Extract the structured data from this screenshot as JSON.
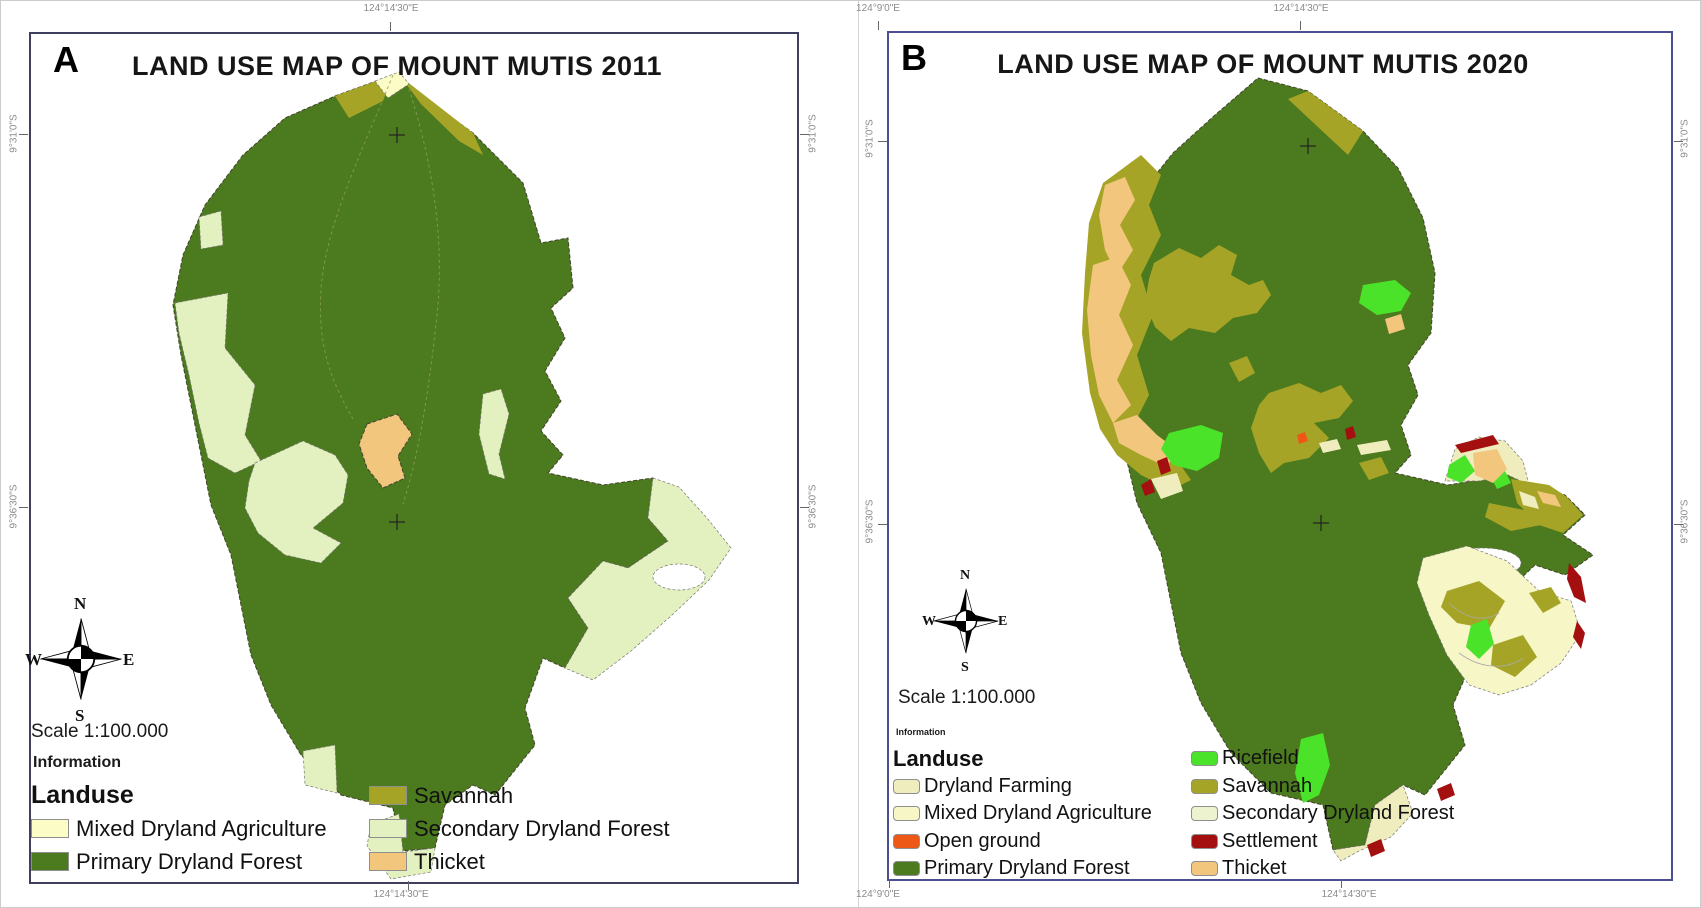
{
  "colors": {
    "primary_dryland_forest": "#4C7A1E",
    "secondary_dryland_forest": "#E3F0BF",
    "secondary_dryland_forest_b": "#EEF3CF",
    "mixed_dryland_agriculture": "#FCFCC6",
    "mixed_dryland_agriculture_b": "#F6F6C6",
    "savannah": "#A6A426",
    "thicket": "#F3C67E",
    "ricefield": "#4BE22A",
    "settlement": "#A3100F",
    "open_ground": "#EE5817",
    "dryland_farming": "#EFEDBD"
  },
  "panels": [
    {
      "letter": "A",
      "title": "LAND USE MAP OF MOUNT MUTIS 2011",
      "scale_label": "Scale 1:100.000",
      "information_label": "Information",
      "landuse_label": "Landuse",
      "compass": {
        "n": "N",
        "s": "S",
        "e": "E",
        "w": "W"
      },
      "coords": {
        "top_center": "124°14'30\"E",
        "bottom_center": "124°14'30\"E",
        "left_upper": "9°31'0\"S",
        "left_lower": "9°36'30\"S",
        "right_upper": "9°31'0\"S",
        "right_lower": "9°36'30\"S"
      },
      "legend_columns": [
        [
          {
            "label": "Mixed Dryland Agriculture",
            "color": "#FCFCC6"
          },
          {
            "label": "Primary Dryland Forest",
            "color": "#4C7A1E"
          }
        ],
        [
          {
            "label": "Savannah",
            "color": "#A6A426"
          },
          {
            "label": "Secondary Dryland Forest",
            "color": "#E3F0BF"
          },
          {
            "label": "Thicket",
            "color": "#F3C67E"
          }
        ]
      ]
    },
    {
      "letter": "B",
      "title": "LAND USE MAP OF MOUNT MUTIS 2020",
      "scale_label": "Scale 1:100.000",
      "information_label": "Information",
      "landuse_label": "Landuse",
      "compass": {
        "n": "N",
        "s": "S",
        "e": "E",
        "w": "W"
      },
      "coords": {
        "top_left": "124°9'0\"E",
        "top_center": "124°14'30\"E",
        "bottom_left": "124°9'0\"E",
        "bottom_center": "124°14'30\"E",
        "left_upper": "9°31'0\"S",
        "left_lower": "9°36'30\"S",
        "right_upper": "9°31'0\"S",
        "right_lower": "9°36'30\"S"
      },
      "legend_columns": [
        [
          {
            "label": "Dryland Farming",
            "color": "#EFEDBD"
          },
          {
            "label": "Mixed Dryland Agriculture",
            "color": "#F6F6C6"
          },
          {
            "label": "Open ground",
            "color": "#EE5817"
          },
          {
            "label": "Primary Dryland Forest",
            "color": "#4C7A1E"
          }
        ],
        [
          {
            "label": "Ricefield",
            "color": "#4BE22A"
          },
          {
            "label": "Savannah",
            "color": "#A6A426"
          },
          {
            "label": "Secondary Dryland Forest",
            "color": "#EEF3CF"
          },
          {
            "label": "Settlement",
            "color": "#A3100F"
          },
          {
            "label": "Thicket",
            "color": "#F3C67E"
          }
        ]
      ]
    }
  ]
}
